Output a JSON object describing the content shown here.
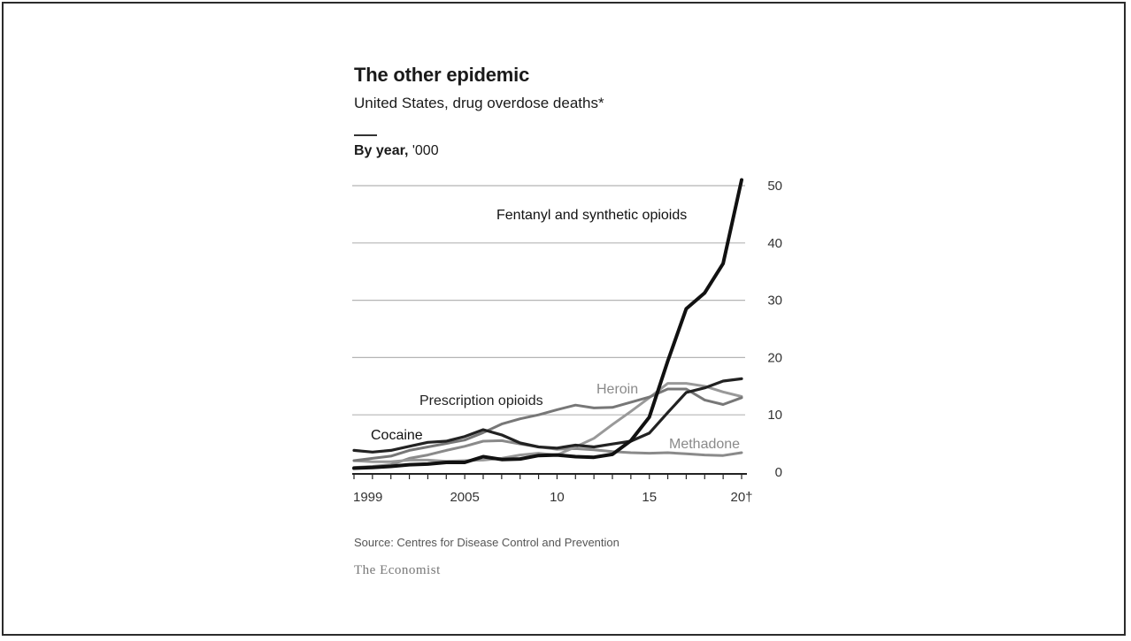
{
  "title": "The other epidemic",
  "subtitle": "United States, drug overdose deaths*",
  "panel_title_bold": "By year,",
  "panel_title_unit": " '000",
  "source": "Source: Centres for Disease Control and Prevention",
  "brand": "The Economist",
  "chart_data": {
    "type": "line",
    "title": "The other epidemic",
    "subtitle": "United States, drug overdose deaths*",
    "ylabel": "By year, '000",
    "xlim": [
      1999,
      2020
    ],
    "ylim": [
      0,
      50
    ],
    "x_ticks": [
      1999,
      2005,
      2010,
      2015,
      2020
    ],
    "x_tick_labels": [
      "1999",
      "2005",
      "10",
      "15",
      "20†"
    ],
    "y_ticks": [
      0,
      10,
      20,
      30,
      40,
      50
    ],
    "y_tick_labels": [
      "0",
      "10",
      "20",
      "30",
      "40",
      "50"
    ],
    "grid": "horizontal",
    "y_axis_side": "right",
    "x": [
      1999,
      2000,
      2001,
      2002,
      2003,
      2004,
      2005,
      2006,
      2007,
      2008,
      2009,
      2010,
      2011,
      2012,
      2013,
      2014,
      2015,
      2016,
      2017,
      2018,
      2019,
      2020
    ],
    "series": [
      {
        "name": "Fentanyl and synthetic opioids",
        "color": "#111111",
        "values": [
          0.7,
          0.8,
          1.0,
          1.3,
          1.4,
          1.7,
          1.7,
          2.7,
          2.2,
          2.3,
          2.9,
          3.0,
          2.7,
          2.6,
          3.1,
          5.5,
          9.6,
          19.4,
          28.5,
          31.3,
          36.4,
          51.0
        ]
      },
      {
        "name": "Prescription opioids",
        "color": "#777777",
        "values": [
          2.0,
          2.4,
          2.8,
          3.8,
          4.4,
          5.0,
          5.6,
          6.9,
          8.4,
          9.3,
          10.0,
          10.9,
          11.7,
          11.2,
          11.3,
          12.2,
          13.1,
          14.5,
          14.5,
          12.6,
          11.8,
          13.0
        ]
      },
      {
        "name": "Heroin",
        "color": "#999999",
        "values": [
          2.0,
          1.8,
          1.8,
          2.1,
          2.1,
          1.9,
          2.0,
          2.1,
          2.4,
          3.0,
          3.3,
          3.0,
          4.4,
          5.9,
          8.3,
          10.6,
          13.0,
          15.5,
          15.5,
          15.0,
          14.0,
          13.2
        ]
      },
      {
        "name": "Cocaine",
        "color": "#222222",
        "values": [
          3.8,
          3.5,
          3.8,
          4.5,
          5.2,
          5.4,
          6.2,
          7.4,
          6.5,
          5.1,
          4.4,
          4.2,
          4.7,
          4.4,
          4.9,
          5.4,
          6.8,
          10.4,
          13.9,
          14.7,
          15.9,
          16.3
        ]
      },
      {
        "name": "Methadone",
        "color": "#8a8a8a",
        "values": [
          0.8,
          1.0,
          1.3,
          2.4,
          3.0,
          3.8,
          4.5,
          5.4,
          5.5,
          4.9,
          4.4,
          4.0,
          4.1,
          3.9,
          3.6,
          3.4,
          3.3,
          3.4,
          3.2,
          3.0,
          2.9,
          3.4
        ]
      }
    ]
  }
}
